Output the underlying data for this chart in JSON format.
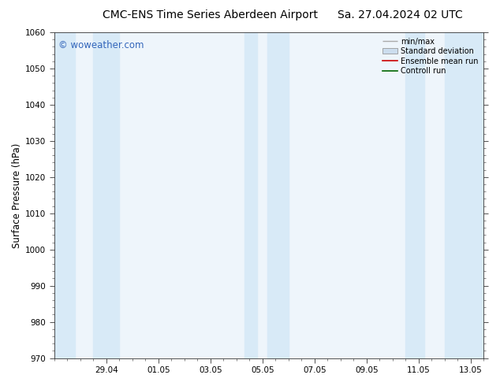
{
  "title_left": "CMC-ENS Time Series Aberdeen Airport",
  "title_right": "Sa. 27.04.2024 02 UTC",
  "ylabel": "Surface Pressure (hPa)",
  "ylim": [
    970,
    1060
  ],
  "yticks": [
    970,
    980,
    990,
    1000,
    1010,
    1020,
    1030,
    1040,
    1050,
    1060
  ],
  "xlim_start": 0.0,
  "xlim_end": 16.5,
  "xtick_labels": [
    "29.04",
    "01.05",
    "03.05",
    "05.05",
    "07.05",
    "09.05",
    "11.05",
    "13.05"
  ],
  "xtick_positions": [
    2.0,
    4.0,
    6.0,
    8.0,
    10.0,
    12.0,
    14.0,
    16.0
  ],
  "shaded_bands": [
    {
      "x_start": 0.0,
      "x_end": 0.8
    },
    {
      "x_start": 1.5,
      "x_end": 2.5
    },
    {
      "x_start": 7.3,
      "x_end": 7.8
    },
    {
      "x_start": 8.2,
      "x_end": 9.0
    },
    {
      "x_start": 13.5,
      "x_end": 14.2
    },
    {
      "x_start": 15.0,
      "x_end": 16.5
    }
  ],
  "band_color": "#d8eaf7",
  "watermark": "© woweather.com",
  "watermark_color": "#3366bb",
  "legend_items": [
    {
      "label": "min/max",
      "color": "#aaaaaa",
      "type": "errorbar"
    },
    {
      "label": "Standard deviation",
      "color": "#ccddee",
      "type": "rect"
    },
    {
      "label": "Ensemble mean run",
      "color": "#cc0000",
      "type": "line"
    },
    {
      "label": "Controll run",
      "color": "#006600",
      "type": "line"
    }
  ],
  "bg_color": "#ffffff",
  "plot_bg_color": "#eef5fb",
  "tick_label_fontsize": 7.5,
  "title_fontsize": 10,
  "ylabel_fontsize": 8.5,
  "watermark_fontsize": 8.5,
  "legend_fontsize": 7.0
}
